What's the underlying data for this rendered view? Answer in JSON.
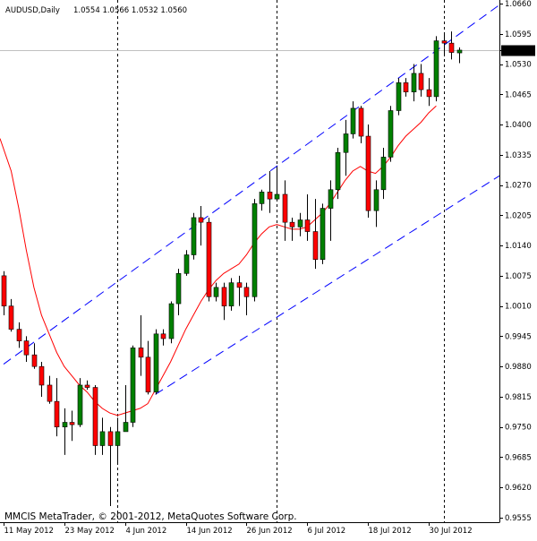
{
  "header": {
    "symbol": "AUDUSD,Daily",
    "ohlc": "1.0554 1.0566 1.0532 1.0560"
  },
  "current_price_label": "1.0560",
  "copyright": "MMCIS MetaTrader, © 2001-2012, MetaQuotes Software Corp.",
  "colors": {
    "background": "#ffffff",
    "bull_candle": "#008000",
    "bear_candle": "#ff0000",
    "moving_average": "#ff0000",
    "channel_lines": "#0000ff",
    "vertical_separators": "#000000",
    "current_price_line": "#c0c0c0",
    "price_tag_background": "#000000",
    "price_tag_text": "#ffffff"
  },
  "chart_data": {
    "type": "candlestick",
    "y_axis": {
      "position": "right",
      "range": [
        0.9555,
        1.066
      ],
      "ticks": [
        "1.0660",
        "1.0595",
        "1.0560",
        "1.0530",
        "1.0465",
        "1.0400",
        "1.0335",
        "1.0270",
        "1.0205",
        "1.0140",
        "1.0075",
        "1.0010",
        "0.9945",
        "0.9880",
        "0.9815",
        "0.9750",
        "0.9685",
        "0.9620",
        "0.9555"
      ]
    },
    "x_axis": {
      "ticks": [
        {
          "index": 0,
          "label": "11 May 2012"
        },
        {
          "index": 8,
          "label": "23 May 2012"
        },
        {
          "index": 16,
          "label": "4 Jun 2012"
        },
        {
          "index": 24,
          "label": "14 Jun 2012"
        },
        {
          "index": 32,
          "label": "26 Jun 2012"
        },
        {
          "index": 40,
          "label": "6 Jul 2012"
        },
        {
          "index": 48,
          "label": "18 Jul 2012"
        },
        {
          "index": 56,
          "label": "30 Jul 2012"
        }
      ]
    },
    "period_separators": [
      15,
      36,
      58
    ],
    "candles": [
      {
        "o": 1.0075,
        "h": 1.0085,
        "l": 0.999,
        "c": 1.001
      },
      {
        "o": 1.001,
        "h": 1.0025,
        "l": 0.9955,
        "c": 0.996
      },
      {
        "o": 0.996,
        "h": 0.9975,
        "l": 0.992,
        "c": 0.9935
      },
      {
        "o": 0.9935,
        "h": 0.9945,
        "l": 0.989,
        "c": 0.9905
      },
      {
        "o": 0.9905,
        "h": 0.993,
        "l": 0.9875,
        "c": 0.988
      },
      {
        "o": 0.988,
        "h": 0.989,
        "l": 0.9815,
        "c": 0.984
      },
      {
        "o": 0.984,
        "h": 0.986,
        "l": 0.98,
        "c": 0.9805
      },
      {
        "o": 0.9805,
        "h": 0.9855,
        "l": 0.973,
        "c": 0.975
      },
      {
        "o": 0.975,
        "h": 0.979,
        "l": 0.969,
        "c": 0.976
      },
      {
        "o": 0.976,
        "h": 0.9785,
        "l": 0.972,
        "c": 0.9755
      },
      {
        "o": 0.9755,
        "h": 0.9855,
        "l": 0.975,
        "c": 0.984
      },
      {
        "o": 0.984,
        "h": 0.985,
        "l": 0.983,
        "c": 0.9835
      },
      {
        "o": 0.9835,
        "h": 0.984,
        "l": 0.969,
        "c": 0.971
      },
      {
        "o": 0.971,
        "h": 0.977,
        "l": 0.969,
        "c": 0.974
      },
      {
        "o": 0.974,
        "h": 0.975,
        "l": 0.958,
        "c": 0.971
      },
      {
        "o": 0.971,
        "h": 0.977,
        "l": 0.967,
        "c": 0.974
      },
      {
        "o": 0.974,
        "h": 0.984,
        "l": 0.974,
        "c": 0.976
      },
      {
        "o": 0.976,
        "h": 0.9925,
        "l": 0.975,
        "c": 0.992
      },
      {
        "o": 0.992,
        "h": 0.999,
        "l": 0.986,
        "c": 0.99
      },
      {
        "o": 0.99,
        "h": 0.9935,
        "l": 0.982,
        "c": 0.9825
      },
      {
        "o": 0.9825,
        "h": 0.996,
        "l": 0.982,
        "c": 0.995
      },
      {
        "o": 0.995,
        "h": 0.996,
        "l": 0.9925,
        "c": 0.994
      },
      {
        "o": 0.994,
        "h": 1.002,
        "l": 0.993,
        "c": 1.0015
      },
      {
        "o": 1.0015,
        "h": 1.009,
        "l": 0.999,
        "c": 1.008
      },
      {
        "o": 1.008,
        "h": 1.013,
        "l": 1.0075,
        "c": 1.012
      },
      {
        "o": 1.012,
        "h": 1.021,
        "l": 1.011,
        "c": 1.02
      },
      {
        "o": 1.02,
        "h": 1.0225,
        "l": 1.014,
        "c": 1.019
      },
      {
        "o": 1.019,
        "h": 1.02,
        "l": 1.002,
        "c": 1.003
      },
      {
        "o": 1.003,
        "h": 1.006,
        "l": 1.002,
        "c": 1.005
      },
      {
        "o": 1.005,
        "h": 1.006,
        "l": 0.998,
        "c": 1.001
      },
      {
        "o": 1.001,
        "h": 1.007,
        "l": 1.0,
        "c": 1.006
      },
      {
        "o": 1.006,
        "h": 1.0075,
        "l": 1.001,
        "c": 1.005
      },
      {
        "o": 1.005,
        "h": 1.006,
        "l": 0.999,
        "c": 1.003
      },
      {
        "o": 1.003,
        "h": 1.024,
        "l": 1.002,
        "c": 1.023
      },
      {
        "o": 1.023,
        "h": 1.026,
        "l": 1.0215,
        "c": 1.0255
      },
      {
        "o": 1.0255,
        "h": 1.03,
        "l": 1.021,
        "c": 1.024
      },
      {
        "o": 1.024,
        "h": 1.031,
        "l": 1.0235,
        "c": 1.025
      },
      {
        "o": 1.025,
        "h": 1.028,
        "l": 1.015,
        "c": 1.019
      },
      {
        "o": 1.019,
        "h": 1.02,
        "l": 1.015,
        "c": 1.018
      },
      {
        "o": 1.018,
        "h": 1.021,
        "l": 1.016,
        "c": 1.0195
      },
      {
        "o": 1.0195,
        "h": 1.025,
        "l": 1.015,
        "c": 1.017
      },
      {
        "o": 1.017,
        "h": 1.024,
        "l": 1.009,
        "c": 1.011
      },
      {
        "o": 1.011,
        "h": 1.023,
        "l": 1.01,
        "c": 1.022
      },
      {
        "o": 1.022,
        "h": 1.028,
        "l": 1.015,
        "c": 1.026
      },
      {
        "o": 1.026,
        "h": 1.035,
        "l": 1.024,
        "c": 1.034
      },
      {
        "o": 1.034,
        "h": 1.041,
        "l": 1.029,
        "c": 1.038
      },
      {
        "o": 1.038,
        "h": 1.045,
        "l": 1.037,
        "c": 1.0435
      },
      {
        "o": 1.0435,
        "h": 1.044,
        "l": 1.036,
        "c": 1.0375
      },
      {
        "o": 1.0375,
        "h": 1.04,
        "l": 1.02,
        "c": 1.0215
      },
      {
        "o": 1.0215,
        "h": 1.028,
        "l": 1.018,
        "c": 1.026
      },
      {
        "o": 1.026,
        "h": 1.035,
        "l": 1.024,
        "c": 1.033
      },
      {
        "o": 1.033,
        "h": 1.044,
        "l": 1.032,
        "c": 1.043
      },
      {
        "o": 1.043,
        "h": 1.05,
        "l": 1.042,
        "c": 1.049
      },
      {
        "o": 1.049,
        "h": 1.05,
        "l": 1.046,
        "c": 1.047
      },
      {
        "o": 1.047,
        "h": 1.053,
        "l": 1.045,
        "c": 1.051
      },
      {
        "o": 1.051,
        "h": 1.053,
        "l": 1.046,
        "c": 1.0475
      },
      {
        "o": 1.0475,
        "h": 1.05,
        "l": 1.044,
        "c": 1.046
      },
      {
        "o": 1.046,
        "h": 1.059,
        "l": 1.045,
        "c": 1.058
      },
      {
        "o": 1.058,
        "h": 1.0595,
        "l": 1.055,
        "c": 1.0575
      },
      {
        "o": 1.0575,
        "h": 1.06,
        "l": 1.054,
        "c": 1.0555
      },
      {
        "o": 1.0554,
        "h": 1.0566,
        "l": 1.0532,
        "c": 1.056
      }
    ],
    "moving_average": [
      null,
      1.03,
      1.022,
      1.013,
      1.005,
      0.999,
      0.995,
      0.991,
      0.988,
      0.986,
      0.984,
      0.9825,
      0.9805,
      0.979,
      0.978,
      0.9775,
      0.978,
      0.9785,
      0.979,
      0.98,
      0.983,
      0.986,
      0.989,
      0.9925,
      0.996,
      0.999,
      1.002,
      1.0045,
      1.0065,
      1.008,
      1.009,
      1.01,
      1.012,
      1.0145,
      1.0165,
      1.018,
      1.0185,
      1.018,
      1.0175,
      1.0175,
      1.018,
      1.0195,
      1.021,
      1.023,
      1.0255,
      1.028,
      1.03,
      1.031,
      1.03,
      1.0295,
      1.031,
      1.033,
      1.0355,
      1.0375,
      1.039,
      1.0405,
      1.0425,
      1.044,
      null,
      null,
      null
    ],
    "channel_lines": [
      {
        "from": {
          "index": 0,
          "value": 0.9885
        },
        "to": {
          "index": 66,
          "value": 1.0665
        }
      },
      {
        "from": {
          "index": 20,
          "value": 0.982
        },
        "to": {
          "index": 75,
          "value": 1.039
        }
      }
    ]
  }
}
